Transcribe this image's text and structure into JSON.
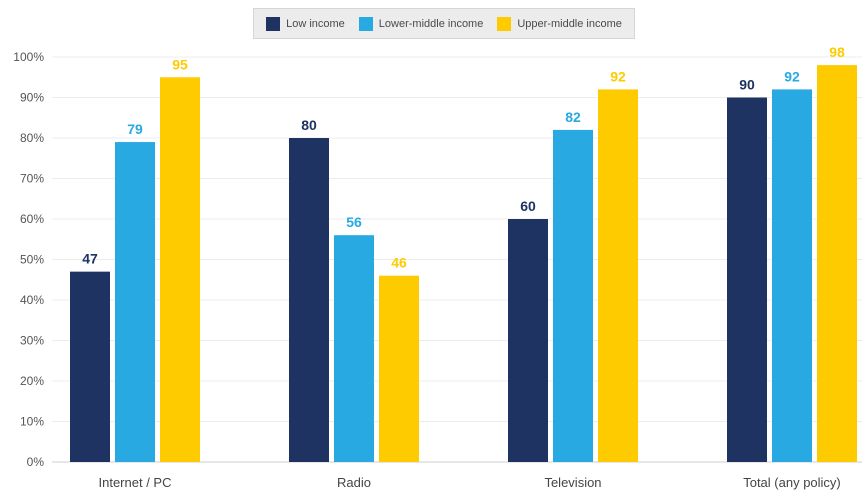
{
  "chart_data": {
    "type": "bar",
    "title": "",
    "xlabel": "",
    "ylabel": "",
    "ylim": [
      0,
      100
    ],
    "y_ticks": [
      "0%",
      "10%",
      "20%",
      "30%",
      "40%",
      "50%",
      "60%",
      "70%",
      "80%",
      "90%",
      "100%"
    ],
    "grid": true,
    "legend_position": "top-center",
    "categories": [
      "Internet / PC",
      "Radio",
      "Television",
      "Total (any policy)"
    ],
    "series": [
      {
        "name": "Low income",
        "color": "#1f3362",
        "values": [
          47,
          80,
          60,
          90
        ]
      },
      {
        "name": "Lower-middle income",
        "color": "#29a9e1",
        "values": [
          79,
          56,
          82,
          92
        ]
      },
      {
        "name": "Upper-middle income",
        "color": "#fecb00",
        "values": [
          95,
          46,
          92,
          98
        ]
      }
    ]
  }
}
